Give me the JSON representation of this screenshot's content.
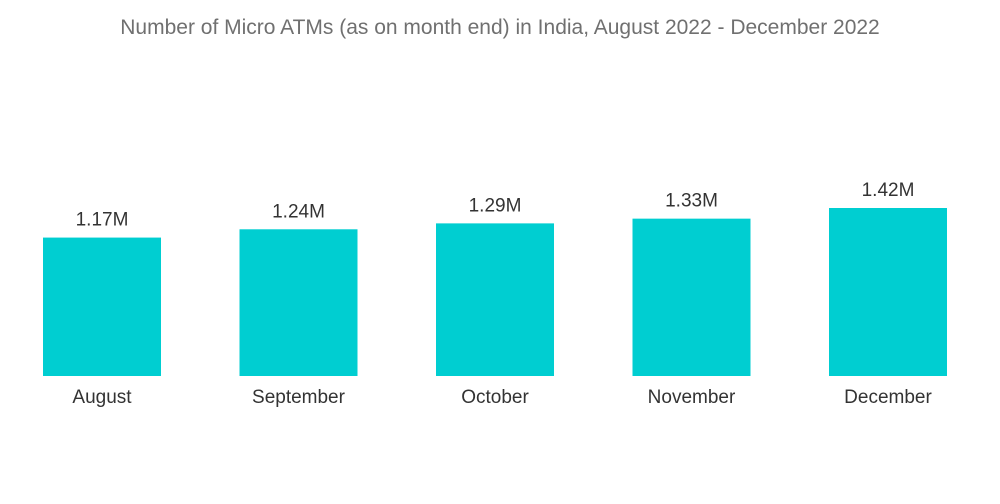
{
  "chart_data": {
    "type": "bar",
    "title": "Number of Micro ATMs (as on month end) in India, August 2022 - December 2022",
    "categories": [
      "August",
      "September",
      "October",
      "November",
      "December"
    ],
    "values": [
      1.17,
      1.24,
      1.29,
      1.33,
      1.42
    ],
    "value_labels": [
      "1.17M",
      "1.24M",
      "1.29M",
      "1.33M",
      "1.42M"
    ],
    "xlabel": "",
    "ylabel": "",
    "ylim": [
      0,
      1.42
    ],
    "grid": false,
    "legend": "none",
    "bar_color": "#00CED1"
  }
}
